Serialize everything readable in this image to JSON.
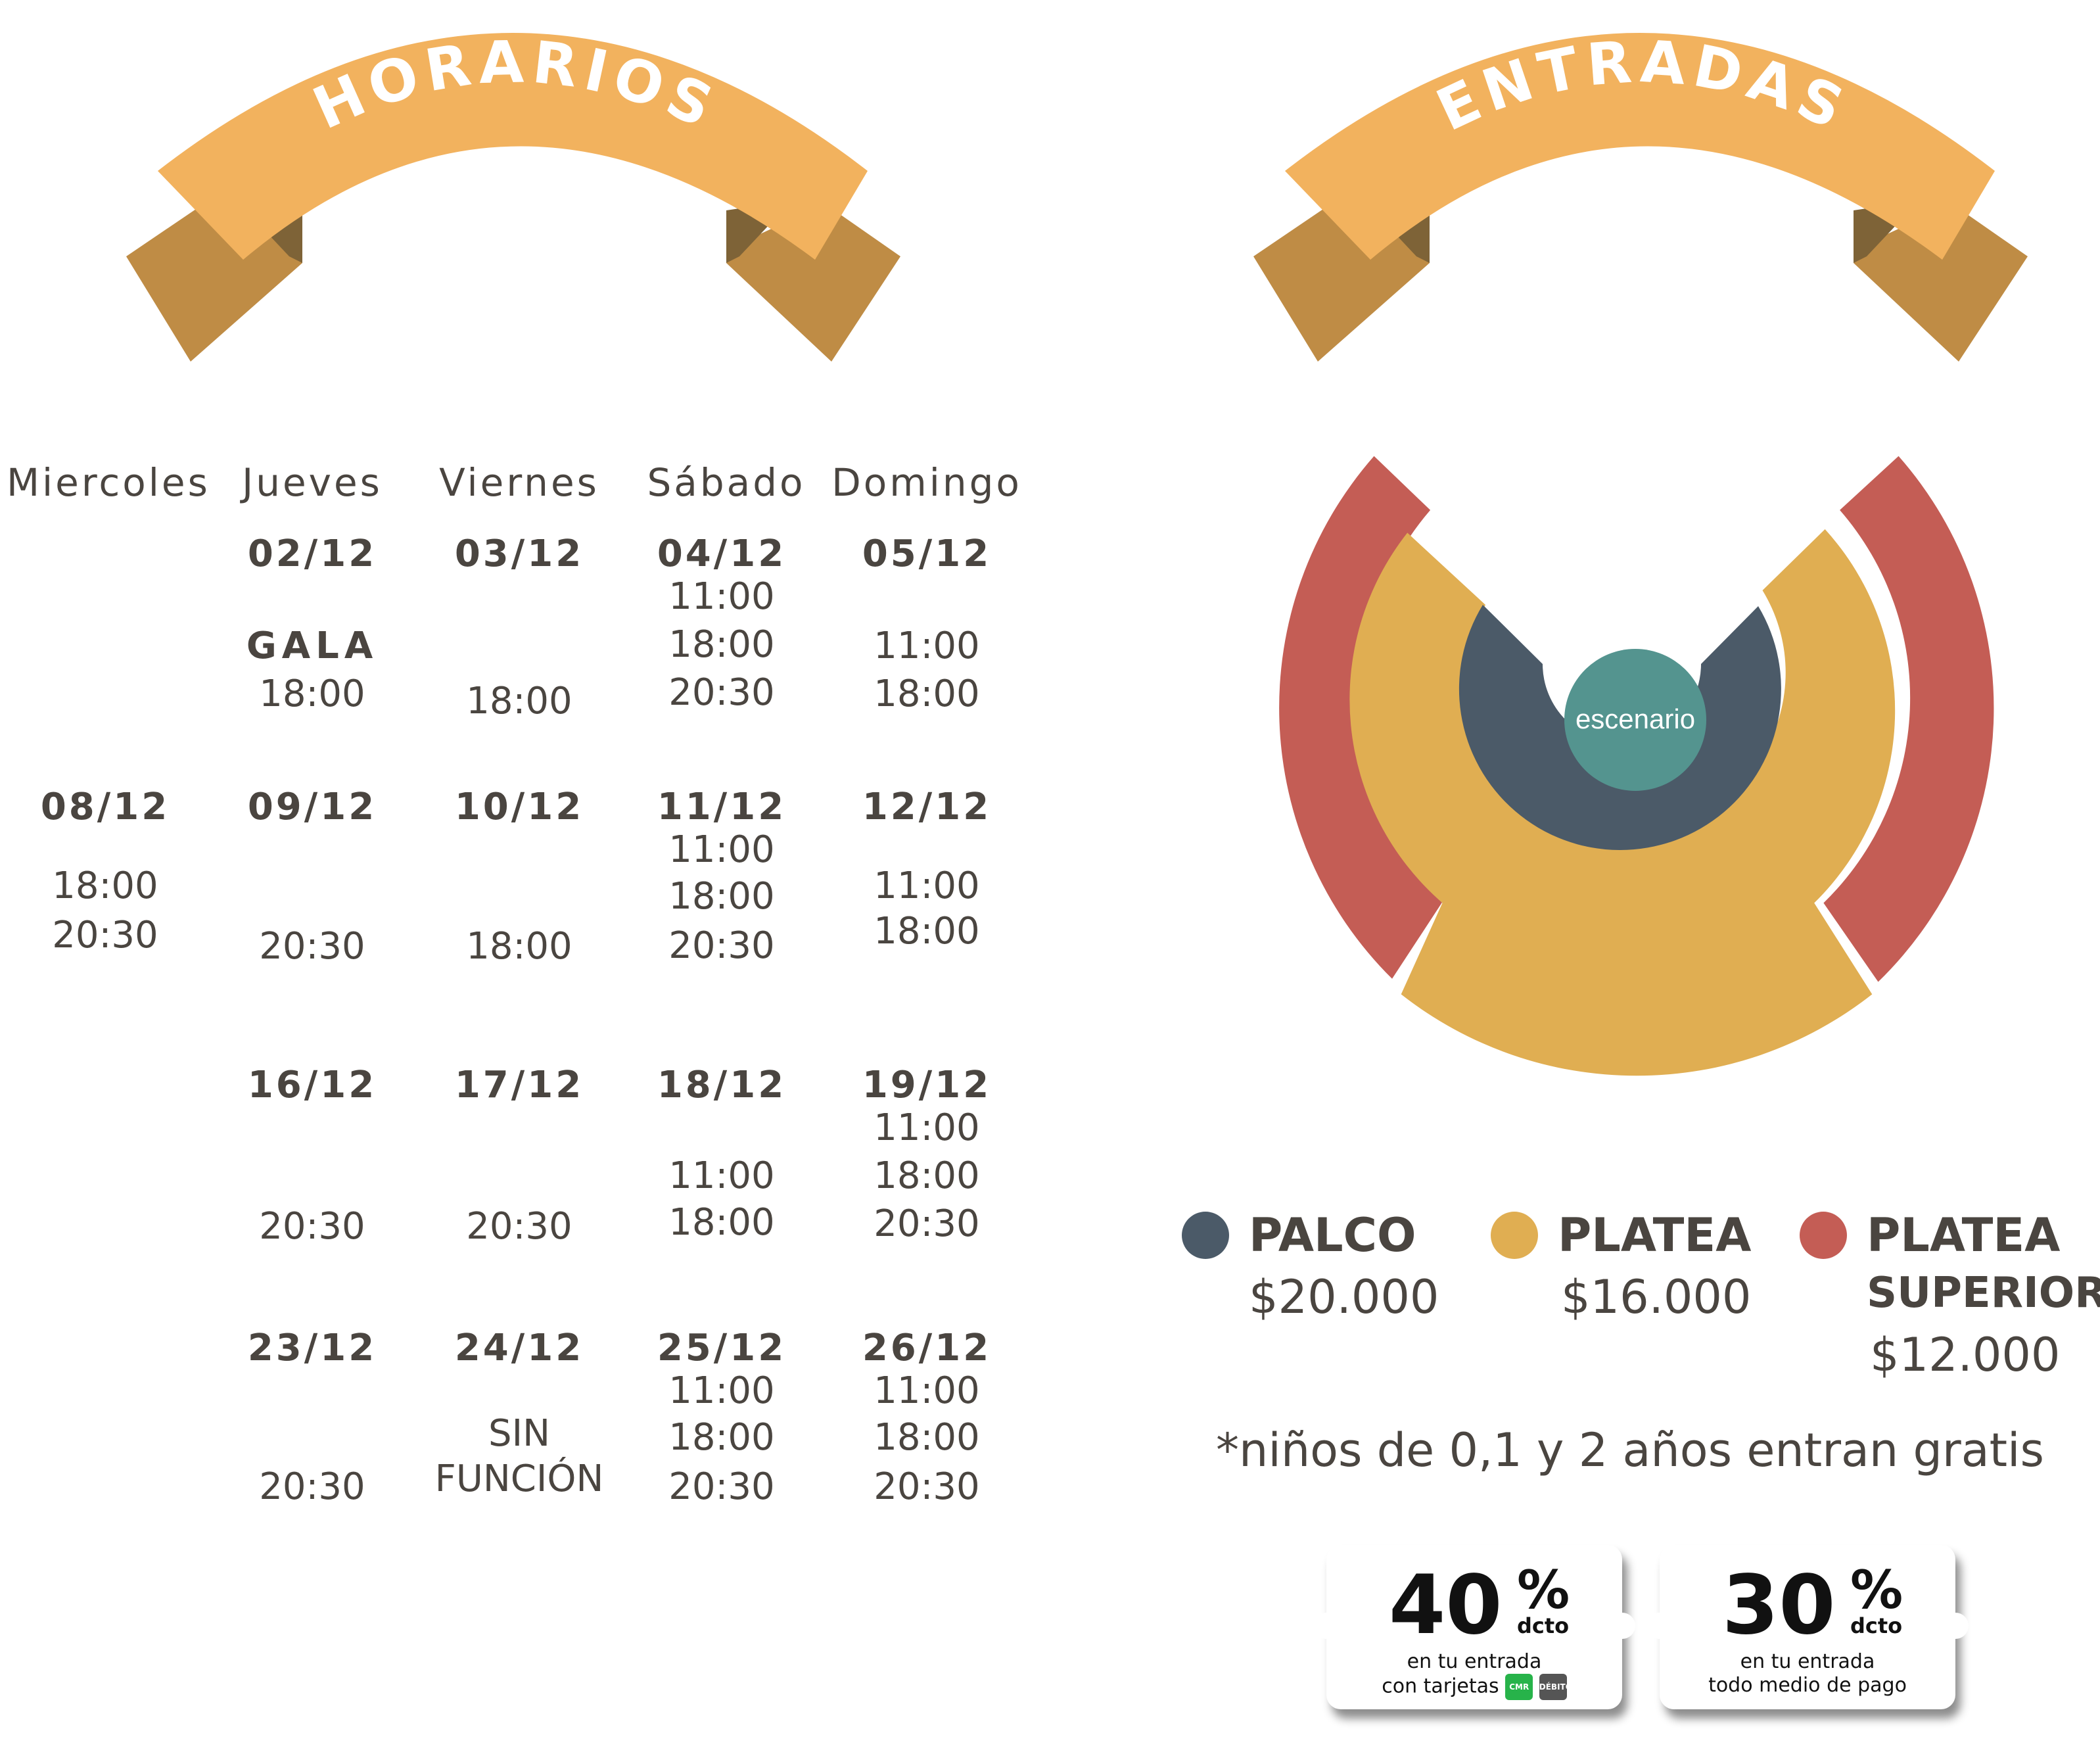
{
  "banners": {
    "left_title": "• HORARIOS •",
    "right_title": "• ENTRADAS •"
  },
  "colors": {
    "banner_main": "#f2b25e",
    "banner_side": "#bf8c45",
    "banner_fold": "#7e6337",
    "palco": "#4b5a68",
    "platea": "#e0ae52",
    "platea_superior": "#c45d55",
    "escenario": "#54948f",
    "text": "#4a4540"
  },
  "schedule": {
    "days": [
      "Miercoles",
      "Jueves",
      "Viernes",
      "Sábado",
      "Domingo"
    ],
    "weeks": [
      {
        "cells": [
          {
            "date": "",
            "lines": []
          },
          {
            "date": "02/12",
            "gala": "GALA",
            "lines": [
              "18:00"
            ]
          },
          {
            "date": "03/12",
            "lines": [
              "18:00"
            ]
          },
          {
            "date": "04/12",
            "lines": [
              "11:00",
              "18:00",
              "20:30"
            ]
          },
          {
            "date": "05/12",
            "lines": [
              "11:00",
              "18:00"
            ]
          }
        ]
      },
      {
        "cells": [
          {
            "date": "08/12",
            "lines": [
              "18:00",
              "20:30"
            ]
          },
          {
            "date": "09/12",
            "lines": [
              "20:30"
            ]
          },
          {
            "date": "10/12",
            "lines": [
              "18:00"
            ]
          },
          {
            "date": "11/12",
            "lines": [
              "11:00",
              "18:00",
              "20:30"
            ]
          },
          {
            "date": "12/12",
            "lines": [
              "11:00",
              "18:00"
            ]
          }
        ]
      },
      {
        "cells": [
          {
            "date": "",
            "lines": []
          },
          {
            "date": "16/12",
            "lines": [
              "20:30"
            ]
          },
          {
            "date": "17/12",
            "lines": [
              "20:30"
            ]
          },
          {
            "date": "18/12",
            "lines": [
              "11:00",
              "18:00"
            ]
          },
          {
            "date": "19/12",
            "lines": [
              "11:00",
              "18:00",
              "20:30"
            ]
          }
        ]
      },
      {
        "cells": [
          {
            "date": "",
            "lines": []
          },
          {
            "date": "23/12",
            "lines": [
              "20:30"
            ]
          },
          {
            "date": "24/12",
            "lines": [
              "SIN",
              "FUNCIÓN"
            ]
          },
          {
            "date": "25/12",
            "lines": [
              "11:00",
              "18:00",
              "20:30"
            ]
          },
          {
            "date": "26/12",
            "lines": [
              "11:00",
              "18:00",
              "20:30"
            ]
          }
        ]
      }
    ]
  },
  "seating": {
    "stage_label": "escenario"
  },
  "prices": {
    "palco": {
      "name": "PALCO",
      "price": "$20.000"
    },
    "platea": {
      "name": "PLATEA",
      "price": "$16.000"
    },
    "platea_superior": {
      "name_line1": "PLATEA",
      "name_line2": "SUPERIOR",
      "price": "$12.000"
    }
  },
  "note": "*niños de 0,1 y 2 años entran gratis",
  "coupons": [
    {
      "value": "40",
      "pct": "%",
      "dcto": "dcto",
      "line1": "en tu entrada",
      "line2": "con tarjetas",
      "badge1": "CMR",
      "badge2": "DÉBITO"
    },
    {
      "value": "30",
      "pct": "%",
      "dcto": "dcto",
      "line1": "en tu entrada",
      "line2": "todo medio de pago"
    }
  ]
}
